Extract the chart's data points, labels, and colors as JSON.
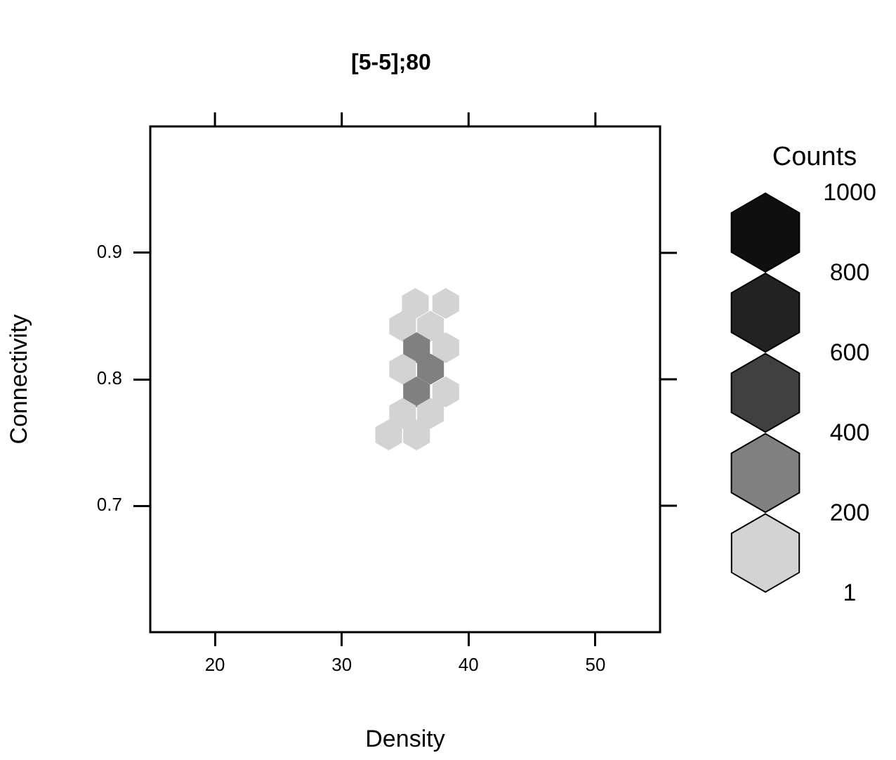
{
  "chart_data": {
    "type": "scatter",
    "title": "[5-5];80",
    "xlabel": "Density",
    "ylabel": "Connectivity",
    "clabel": "Counts",
    "x": [
      35.8,
      38.2,
      34.8,
      37.0,
      35.9,
      38.2,
      34.8,
      37.0,
      35.9,
      38.2,
      34.8,
      37.0,
      33.7,
      35.9
    ],
    "values": [
      0.86,
      0.86,
      0.842,
      0.842,
      0.825,
      0.825,
      0.808,
      0.808,
      0.79,
      0.79,
      0.773,
      0.773,
      0.756,
      0.756
    ],
    "colors": [
      "#d3d3d3",
      "#d3d3d3",
      "#d3d3d3",
      "#d3d3d3",
      "#808080",
      "#d3d3d3",
      "#d3d3d3",
      "#808080",
      "#808080",
      "#d3d3d3",
      "#d3d3d3",
      "#d3d3d3",
      "#d3d3d3",
      "#d3d3d3"
    ],
    "xlim": [
      14.9,
      55.1
    ],
    "ylim": [
      0.6,
      1.0
    ],
    "xticks": [
      20,
      30,
      40,
      50
    ],
    "yticks": [
      0.7,
      0.8,
      0.9
    ],
    "clim": [
      1,
      1000
    ],
    "cticks": [
      1,
      200,
      400,
      600,
      800,
      1000
    ]
  }
}
